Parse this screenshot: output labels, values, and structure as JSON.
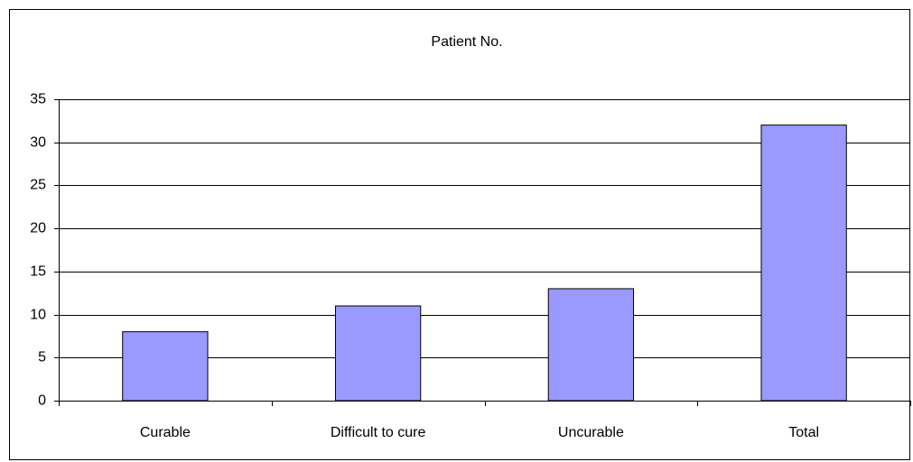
{
  "chart_data": {
    "type": "bar",
    "title": "Patient No.",
    "categories": [
      "Curable",
      "Difficult to cure",
      "Uncurable",
      "Total"
    ],
    "values": [
      8,
      11,
      13,
      32
    ],
    "color": "#9999ff",
    "ylim": [
      0,
      35
    ],
    "yticks": [
      0,
      5,
      10,
      15,
      20,
      25,
      30,
      35
    ],
    "grid": true
  }
}
